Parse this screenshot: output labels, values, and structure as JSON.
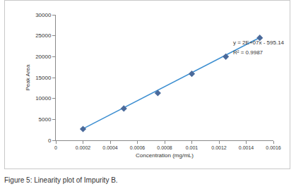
{
  "chart_data": {
    "type": "scatter",
    "title": "Figure 5: Linearity plot of Impurity B.",
    "x_label": "Concentration (mg/mL)",
    "y_label": "Peak Area",
    "annotations": [
      "y = 2E+07x - 595.14",
      "R² = 0.9987"
    ],
    "x": [
      0.0002,
      0.0005,
      0.00075,
      0.001,
      0.00125,
      0.0015
    ],
    "series": [
      {
        "type": "line",
        "color": "#3d8fd1",
        "values": [
          2760,
          7790,
          11980,
          16180,
          20370,
          24560
        ]
      },
      {
        "type": "scatter",
        "marker": "diamond",
        "color": "#4a6a9b",
        "values": [
          2700,
          7600,
          11300,
          15900,
          20000,
          24500
        ]
      }
    ],
    "xlim": [
      0,
      0.0016
    ],
    "xticks": [
      0,
      0.0002,
      0.0004,
      0.0006,
      0.0008,
      0.001,
      0.0012,
      0.0014,
      0.0016
    ],
    "ylim": [
      0,
      30000
    ],
    "yticks": [
      0,
      5000,
      10000,
      15000,
      20000,
      25000,
      30000
    ],
    "grid": false
  }
}
